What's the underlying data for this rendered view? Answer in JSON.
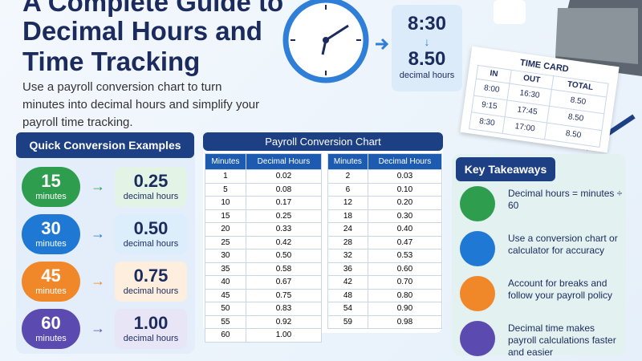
{
  "header": {
    "title_lines": [
      "A Complete Guide to",
      "Decimal Hours and",
      "Time Tracking"
    ],
    "subtitle": "Use a payroll conversion chart to turn minutes into decimal hours and simplify your payroll time tracking."
  },
  "hero": {
    "time": "8:30",
    "arrow": "↓",
    "decimal": "8.50",
    "caption": "decimal hours"
  },
  "time_card": {
    "title": "TIME CARD",
    "headers": [
      "IN",
      "OUT",
      "TOTAL"
    ],
    "rows": [
      [
        "8:00",
        "16:30",
        "8.50"
      ],
      [
        "9:15",
        "17:45",
        "8.50"
      ],
      [
        "8:30",
        "17:00",
        "8.50"
      ]
    ]
  },
  "quick": {
    "title": "Quick Conversion Examples",
    "items": [
      {
        "minutes": "15",
        "minutes_unit": "minutes",
        "decimal": "0.25",
        "decimal_unit": "decimal hours"
      },
      {
        "minutes": "30",
        "minutes_unit": "minutes",
        "decimal": "0.50",
        "decimal_unit": "decimal hours"
      },
      {
        "minutes": "45",
        "minutes_unit": "minutes",
        "decimal": "0.75",
        "decimal_unit": "decimal hours"
      },
      {
        "minutes": "60",
        "minutes_unit": "minutes",
        "decimal": "1.00",
        "decimal_unit": "decimal hours"
      }
    ]
  },
  "chart": {
    "title": "Payroll Conversion Chart",
    "tables": [
      {
        "headers": [
          "Minutes",
          "Decimal Hours"
        ],
        "rows": [
          [
            "1",
            "0.02"
          ],
          [
            "5",
            "0.08"
          ],
          [
            "10",
            "0.17"
          ],
          [
            "15",
            "0.25"
          ],
          [
            "20",
            "0.33"
          ],
          [
            "25",
            "0.42"
          ],
          [
            "30",
            "0.50"
          ],
          [
            "35",
            "0.58"
          ],
          [
            "40",
            "0.67"
          ],
          [
            "45",
            "0.75"
          ],
          [
            "50",
            "0.83"
          ],
          [
            "55",
            "0.92"
          ],
          [
            "60",
            "1.00"
          ]
        ]
      },
      {
        "headers": [
          "Minutes",
          "Decimal Hours"
        ],
        "rows": [
          [
            "2",
            "0.03"
          ],
          [
            "6",
            "0.10"
          ],
          [
            "12",
            "0.20"
          ],
          [
            "18",
            "0.30"
          ],
          [
            "24",
            "0.40"
          ],
          [
            "28",
            "0.47"
          ],
          [
            "32",
            "0.53"
          ],
          [
            "36",
            "0.60"
          ],
          [
            "42",
            "0.70"
          ],
          [
            "48",
            "0.80"
          ],
          [
            "54",
            "0.90"
          ],
          [
            "59",
            "0.98"
          ]
        ]
      }
    ]
  },
  "takeaways": {
    "title": "Key Takeaways",
    "items": [
      "Decimal hours = minutes ÷ 60",
      "Use a conversion chart or calculator for accuracy",
      "Account for breaks and follow your payroll policy",
      "Decimal time makes payroll calculations faster and easier"
    ]
  }
}
